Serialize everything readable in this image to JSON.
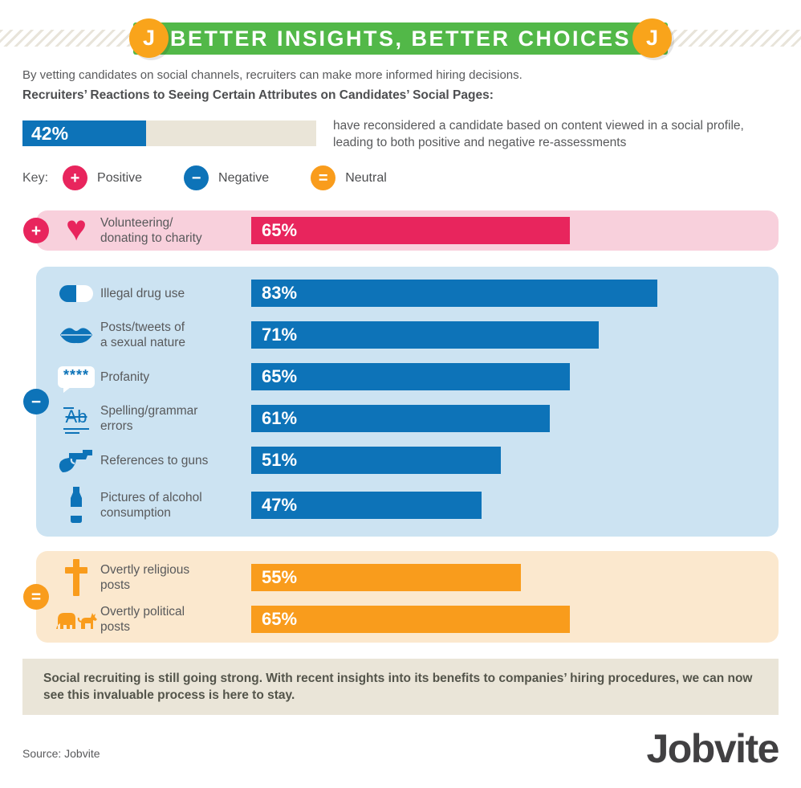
{
  "header": {
    "title": "BETTER INSIGHTS, BETTER CHOICES",
    "badge_left": "J",
    "badge_right": "J"
  },
  "intro": {
    "line1": "By vetting candidates on social channels, recruiters can make more informed hiring decisions.",
    "heading": "Recruiters’ Reactions to Seeing Certain Attributes on Candidates’ Social Pages:"
  },
  "stat": {
    "value": 42,
    "display": "42%",
    "description": "have reconsidered a candidate based on content viewed in a social profile, leading to both positive and negative re-assessments"
  },
  "key": {
    "label": "Key:",
    "items": [
      {
        "symbol": "+",
        "label": "Positive",
        "color": "#e8255d"
      },
      {
        "symbol": "−",
        "label": "Negative",
        "color": "#0d73b8"
      },
      {
        "symbol": "=",
        "label": "Neutral",
        "color": "#f99c1c"
      }
    ]
  },
  "sections": {
    "positive": {
      "symbol": "+",
      "rows": [
        {
          "icon": "heart-icon",
          "icon_text": "♥",
          "lines": [
            "Volunteering/",
            "donating to charity"
          ],
          "value": 65,
          "display": "65%"
        }
      ]
    },
    "negative": {
      "symbol": "−",
      "rows": [
        {
          "icon": "pill-icon",
          "lines": [
            "Illegal drug use"
          ],
          "value": 83,
          "display": "83%"
        },
        {
          "icon": "lips-icon",
          "lines": [
            "Posts/tweets of",
            "a sexual nature"
          ],
          "value": 71,
          "display": "71%"
        },
        {
          "icon": "profanity-icon",
          "icon_text": "****",
          "lines": [
            "Profanity"
          ],
          "value": 65,
          "display": "65%"
        },
        {
          "icon": "spelling-icon",
          "icon_text": "Ab",
          "lines": [
            "Spelling/grammar",
            "errors"
          ],
          "value": 61,
          "display": "61%"
        },
        {
          "icon": "gun-icon",
          "lines": [
            "References to guns"
          ],
          "value": 51,
          "display": "51%"
        },
        {
          "icon": "bottle-icon",
          "lines": [
            "Pictures of alcohol",
            "consumption"
          ],
          "value": 47,
          "display": "47%"
        }
      ]
    },
    "neutral": {
      "symbol": "=",
      "rows": [
        {
          "icon": "cross-icon",
          "lines": [
            "Overtly religious",
            "posts"
          ],
          "value": 55,
          "display": "55%"
        },
        {
          "icon": "political-icon",
          "lines": [
            "Overtly political",
            "posts"
          ],
          "value": 65,
          "display": "65%"
        }
      ]
    }
  },
  "footer": {
    "note": "Social recruiting is still going strong. With recent insights into its benefits to companies’ hiring procedures, we can now see this invaluable process is here to stay.",
    "source": "Source: Jobvite",
    "logo": "Jobvite"
  },
  "chart_data": {
    "type": "bar",
    "orientation": "horizontal",
    "title": "Recruiters’ Reactions to Seeing Certain Attributes on Candidates’ Social Pages",
    "unit": "percent",
    "xlim": [
      0,
      100
    ],
    "standalone_stat": {
      "value": 42,
      "text": "have reconsidered a candidate based on content viewed in a social profile, leading to both positive and negative re-assessments"
    },
    "series": [
      {
        "name": "Positive",
        "color": "#e8255d",
        "categories": [
          "Volunteering/donating to charity"
        ],
        "values": [
          65
        ]
      },
      {
        "name": "Negative",
        "color": "#0d73b8",
        "categories": [
          "Illegal drug use",
          "Posts/tweets of a sexual nature",
          "Profanity",
          "Spelling/grammar errors",
          "References to guns",
          "Pictures of alcohol consumption"
        ],
        "values": [
          83,
          71,
          65,
          61,
          51,
          47
        ]
      },
      {
        "name": "Neutral",
        "color": "#f99c1c",
        "categories": [
          "Overtly religious posts",
          "Overtly political posts"
        ],
        "values": [
          55,
          65
        ]
      }
    ]
  }
}
